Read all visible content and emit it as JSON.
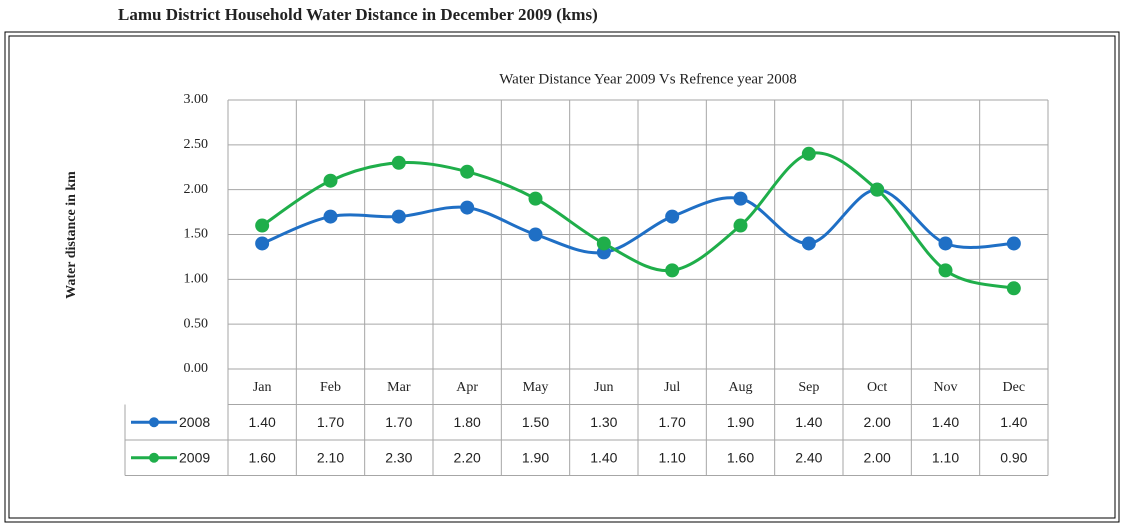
{
  "page_title": "Lamu District Household Water Distance in December 2009 (kms)",
  "chart_data": {
    "type": "line",
    "title": "Water Distance Year 2009 Vs Refrence year 2008",
    "y_label": "Water distance in km",
    "categories": [
      "Jan",
      "Feb",
      "Mar",
      "Apr",
      "May",
      "Jun",
      "Jul",
      "Aug",
      "Sep",
      "Oct",
      "Nov",
      "Dec"
    ],
    "series": [
      {
        "name": "2008",
        "color": "#1f6fc5",
        "values": [
          1.4,
          1.7,
          1.7,
          1.8,
          1.5,
          1.3,
          1.7,
          1.9,
          1.4,
          2.0,
          1.4,
          1.4
        ],
        "value_labels": [
          "1.40",
          "1.70",
          "1.70",
          "1.80",
          "1.50",
          "1.30",
          "1.70",
          "1.90",
          "1.40",
          "2.00",
          "1.40",
          "1.40"
        ]
      },
      {
        "name": "2009",
        "color": "#1fae4a",
        "values": [
          1.6,
          2.1,
          2.3,
          2.2,
          1.9,
          1.4,
          1.1,
          1.6,
          2.4,
          2.0,
          1.1,
          0.9
        ],
        "value_labels": [
          "1.60",
          "2.10",
          "2.30",
          "2.20",
          "1.90",
          "1.40",
          "1.10",
          "1.60",
          "2.40",
          "2.00",
          "1.10",
          "0.90"
        ]
      }
    ],
    "ylim": [
      0,
      3
    ],
    "yticks": [
      {
        "value": 0,
        "label": "0.00"
      },
      {
        "value": 0.5,
        "label": "0.50"
      },
      {
        "value": 1,
        "label": "1.00"
      },
      {
        "value": 1.5,
        "label": "1.50"
      },
      {
        "value": 2,
        "label": "2.00"
      },
      {
        "value": 2.5,
        "label": "2.50"
      },
      {
        "value": 3,
        "label": "3.00"
      }
    ],
    "grid": true,
    "smooth": true
  }
}
